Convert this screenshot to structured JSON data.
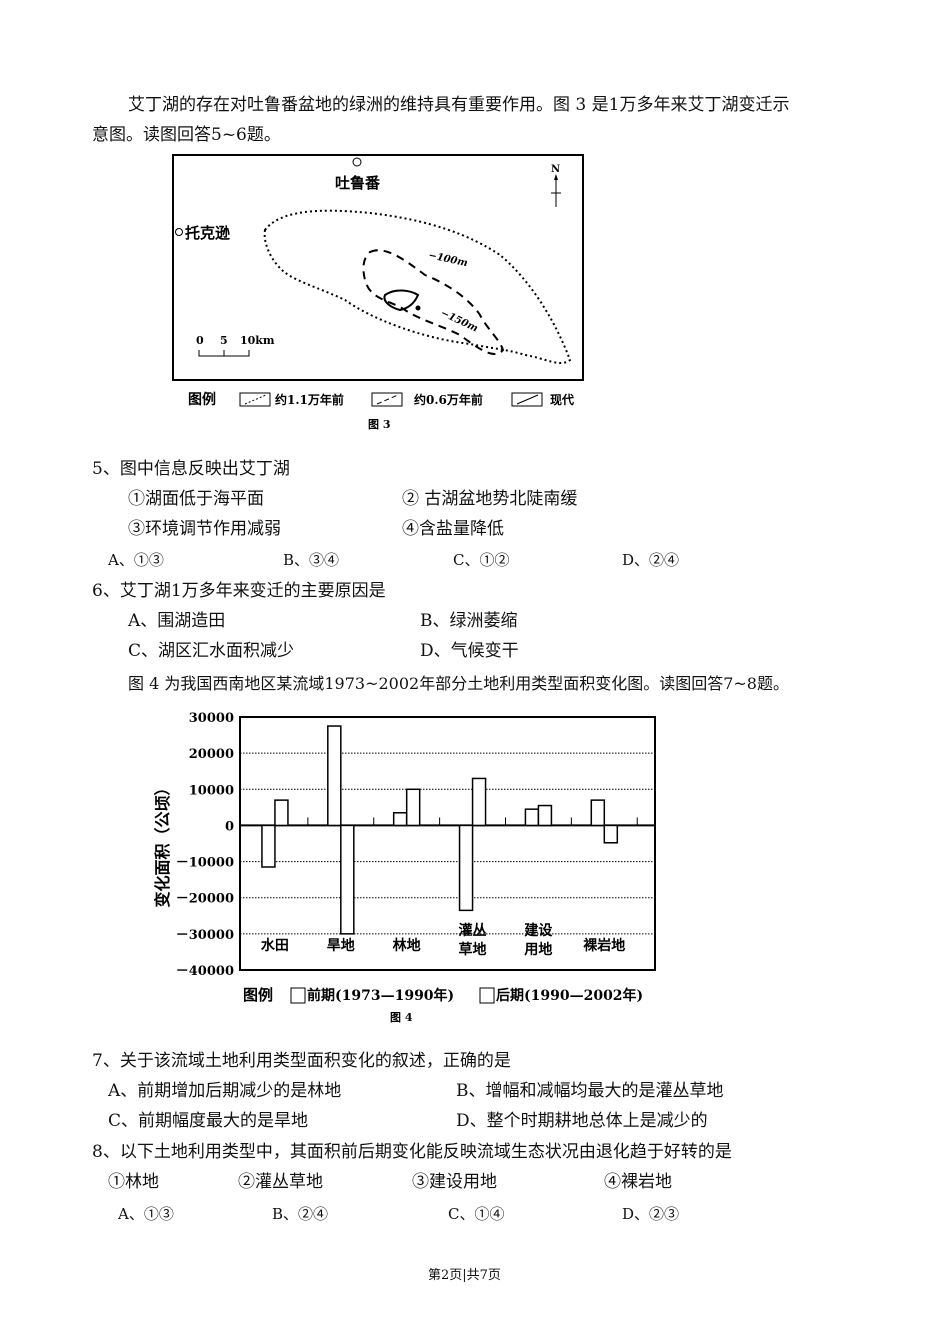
{
  "intro1": "艾丁湖的存在对吐鲁番盆地的绿洲的维持具有重要作用。图 3 是1万多年来艾丁湖变迁示",
  "intro1b": "意图。读图回答5~6题。",
  "map": {
    "place1": "吐鲁番",
    "place2": "托克逊",
    "north": "N",
    "contour1": "−100m",
    "contour2": "−150m",
    "scale": [
      "0",
      "5",
      "10km"
    ],
    "legend_title": "图例",
    "legend": [
      "约1.1万年前",
      "约0.6万年前",
      "现代"
    ],
    "caption": "图 3"
  },
  "q5": {
    "stem": "5、图中信息反映出艾丁湖",
    "items": [
      "①湖面低于海平面",
      "② 古湖盆地势北陡南缓",
      "③环境调节作用减弱",
      "④含盐量降低"
    ],
    "options": [
      "A、①③",
      "B、③④",
      "C、①②",
      "D、②④"
    ]
  },
  "q6": {
    "stem": "6、艾丁湖1万多年来变迁的主要原因是",
    "options": [
      "A、围湖造田",
      "B、绿洲萎缩",
      "C、湖区汇水面积减少",
      "D、气候变干"
    ]
  },
  "intro2": "图 4 为我国西南地区某流域1973~2002年部分土地利用类型面积变化图。读图回答7~8题。",
  "chart_data": {
    "type": "bar",
    "ylabel": "变化面积（公顷）",
    "ylim": [
      -40000,
      30000
    ],
    "yticks": [
      "30000",
      "20000",
      "10000",
      "0",
      "-10000",
      "-20000",
      "-30000",
      "-40000"
    ],
    "categories": [
      "水田",
      "旱地",
      "林地",
      "灌丛草地",
      "建设用地",
      "裸岩地"
    ],
    "category_lines": [
      [
        "水田"
      ],
      [
        "旱地"
      ],
      [
        "林地"
      ],
      [
        "灌丛",
        "草地"
      ],
      [
        "建设",
        "用地"
      ],
      [
        "裸岩地"
      ]
    ],
    "series": [
      {
        "name": "前期(1973—1990年)",
        "values": [
          -11500,
          27500,
          3500,
          -23500,
          4500,
          7000
        ]
      },
      {
        "name": "后期(1990—2002年)",
        "values": [
          7000,
          -30000,
          10000,
          13000,
          5500,
          -4800
        ]
      }
    ],
    "grid": true,
    "legend_title": "图例",
    "caption": "图 4"
  },
  "q7": {
    "stem": "7、关于该流域土地利用类型面积变化的叙述，正确的是",
    "options": [
      "A、前期增加后期减少的是林地",
      "B、增幅和减幅均最大的是灌丛草地",
      "C、前期幅度最大的是旱地",
      "D、整个时期耕地总体上是减少的"
    ]
  },
  "q8": {
    "stem": "8、以下土地利用类型中，其面积前后期变化能反映流域生态状况由退化趋于好转的是",
    "items": [
      "①林地",
      "②灌丛草地",
      "③建设用地",
      "④裸岩地"
    ],
    "options": [
      "A、①③",
      "B、②④",
      "C、①④",
      "D、②③"
    ]
  },
  "footer": "第2页|共7页"
}
